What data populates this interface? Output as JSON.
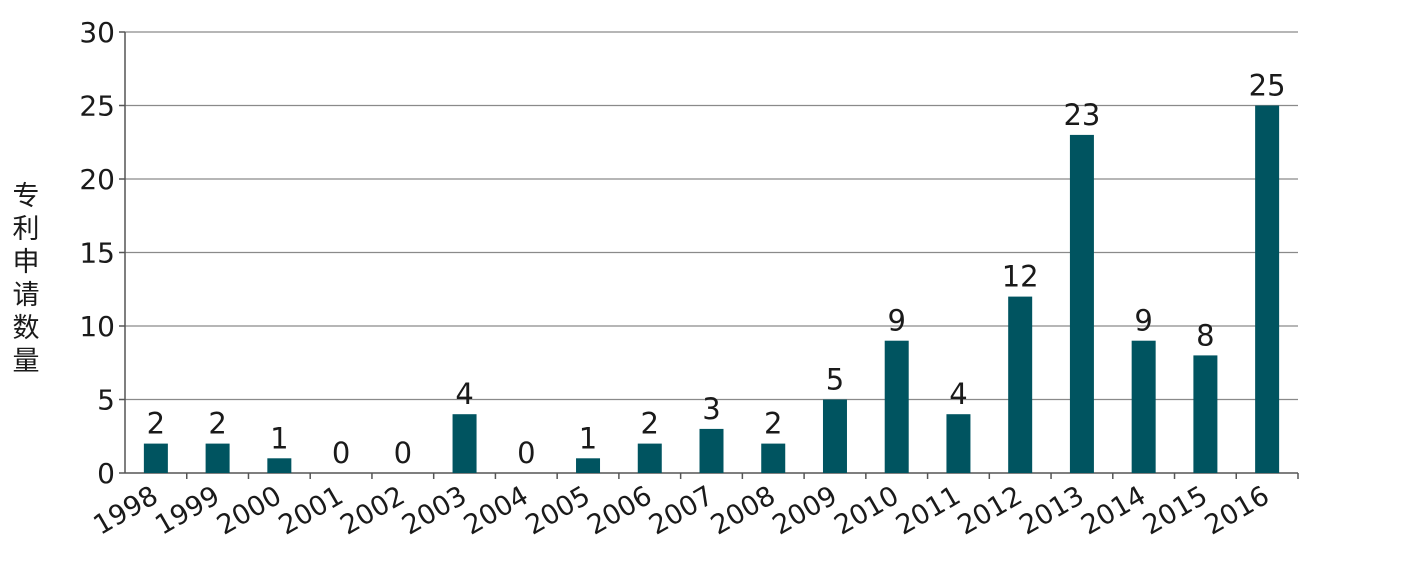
{
  "chart_data": {
    "type": "bar",
    "title": "",
    "xlabel": "",
    "ylabel": "专利申请数量",
    "categories": [
      "1998",
      "1999",
      "2000",
      "2001",
      "2002",
      "2003",
      "2004",
      "2005",
      "2006",
      "2007",
      "2008",
      "2009",
      "2010",
      "2011",
      "2012",
      "2013",
      "2014",
      "2015",
      "2016"
    ],
    "values": [
      2,
      2,
      1,
      0,
      0,
      4,
      0,
      1,
      2,
      3,
      2,
      5,
      9,
      4,
      12,
      23,
      9,
      8,
      25
    ],
    "ylim": [
      0,
      30
    ],
    "yticks": [
      0,
      5,
      10,
      15,
      20,
      25,
      30
    ],
    "grid": true,
    "legend": "none",
    "bar_color": "#005460"
  }
}
